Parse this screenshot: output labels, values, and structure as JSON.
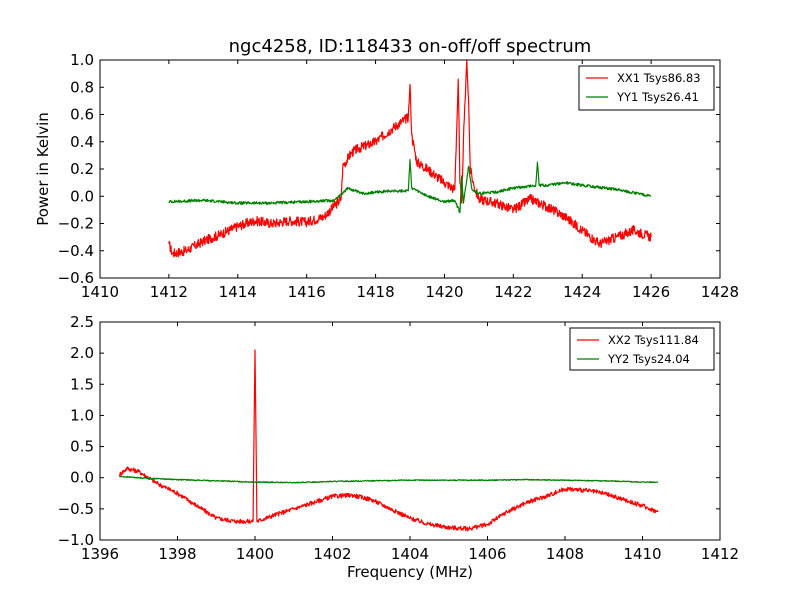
{
  "chart_data": [
    {
      "type": "line",
      "title": "ngc4258, ID:118433 on-off/off spectrum",
      "xlabel": "",
      "ylabel": "Power in Kelvin",
      "xlim": [
        1410,
        1428
      ],
      "ylim": [
        -0.6,
        1.0
      ],
      "xticks": [
        1410,
        1412,
        1414,
        1416,
        1418,
        1420,
        1422,
        1424,
        1426,
        1428
      ],
      "xtick_labels": [
        "1410",
        "1412",
        "1414",
        "1416",
        "1418",
        "1420",
        "1422",
        "1424",
        "1426",
        "1428"
      ],
      "yticks": [
        -0.6,
        -0.4,
        -0.2,
        0.0,
        0.2,
        0.4,
        0.6,
        0.8,
        1.0
      ],
      "ytick_labels": [
        "−0.6",
        "−0.4",
        "−0.2",
        "0.0",
        "0.2",
        "0.4",
        "0.6",
        "0.8",
        "1.0"
      ],
      "grid": false,
      "legend_position": "top-right",
      "series": [
        {
          "name": "XX1 Tsys86.83",
          "color": "#ff0000",
          "noise": 0.035,
          "x": [
            1412.0,
            1412.1,
            1412.5,
            1413.0,
            1413.5,
            1414.0,
            1414.5,
            1415.0,
            1415.5,
            1416.0,
            1416.5,
            1417.0,
            1417.05,
            1417.3,
            1417.5,
            1418.0,
            1418.5,
            1418.95,
            1419.0,
            1419.05,
            1419.2,
            1419.5,
            1420.0,
            1420.3,
            1420.4,
            1420.45,
            1420.5,
            1420.55,
            1420.65,
            1420.7,
            1420.75,
            1420.85,
            1421.0,
            1421.5,
            1422.0,
            1422.5,
            1423.0,
            1423.5,
            1424.0,
            1424.5,
            1425.0,
            1425.5,
            1426.0
          ],
          "y": [
            -0.35,
            -0.42,
            -0.4,
            -0.33,
            -0.28,
            -0.22,
            -0.18,
            -0.2,
            -0.18,
            -0.19,
            -0.15,
            -0.02,
            0.22,
            0.32,
            0.35,
            0.4,
            0.5,
            0.58,
            0.82,
            0.45,
            0.25,
            0.2,
            0.1,
            0.05,
            0.86,
            0.1,
            -0.05,
            0.4,
            1.0,
            0.7,
            0.2,
            0.08,
            -0.02,
            -0.05,
            -0.1,
            -0.02,
            -0.08,
            -0.15,
            -0.25,
            -0.35,
            -0.3,
            -0.25,
            -0.3
          ]
        },
        {
          "name": "YY1 Tsys26.41",
          "color": "#008000",
          "noise": 0.01,
          "x": [
            1412.0,
            1413.0,
            1414.0,
            1415.0,
            1416.0,
            1416.8,
            1417.2,
            1417.6,
            1418.5,
            1418.95,
            1419.0,
            1419.05,
            1419.5,
            1420.0,
            1420.3,
            1420.45,
            1420.5,
            1420.55,
            1420.7,
            1420.8,
            1421.0,
            1421.5,
            1422.0,
            1422.65,
            1422.7,
            1422.75,
            1423.0,
            1423.5,
            1424.0,
            1425.0,
            1426.0
          ],
          "y": [
            -0.04,
            -0.03,
            -0.05,
            -0.05,
            -0.04,
            -0.03,
            0.06,
            0.02,
            0.04,
            0.04,
            0.27,
            0.06,
            0.0,
            -0.04,
            -0.03,
            -0.12,
            0.15,
            -0.05,
            0.22,
            0.05,
            0.02,
            0.03,
            0.06,
            0.08,
            0.25,
            0.08,
            0.08,
            0.1,
            0.08,
            0.05,
            0.0
          ]
        }
      ]
    },
    {
      "type": "line",
      "title": "",
      "xlabel": "Frequency (MHz)",
      "ylabel": "",
      "xlim": [
        1396,
        1412
      ],
      "ylim": [
        -1.0,
        2.5
      ],
      "xticks": [
        1396,
        1398,
        1400,
        1402,
        1404,
        1406,
        1408,
        1410,
        1412
      ],
      "xtick_labels": [
        "1396",
        "1398",
        "1400",
        "1402",
        "1404",
        "1406",
        "1408",
        "1410",
        "1412"
      ],
      "yticks": [
        -1.0,
        -0.5,
        0.0,
        0.5,
        1.0,
        1.5,
        2.0,
        2.5
      ],
      "ytick_labels": [
        "−1.0",
        "−0.5",
        "0.0",
        "0.5",
        "1.0",
        "1.5",
        "2.0",
        "2.5"
      ],
      "grid": false,
      "legend_position": "top-right",
      "series": [
        {
          "name": "XX2 Tsys111.84",
          "color": "#ff0000",
          "noise": 0.035,
          "x": [
            1396.5,
            1396.7,
            1397.0,
            1397.5,
            1398.0,
            1398.5,
            1399.0,
            1399.5,
            1399.95,
            1400.0,
            1400.05,
            1400.5,
            1401.0,
            1401.5,
            1402.0,
            1402.5,
            1403.0,
            1403.5,
            1404.0,
            1404.5,
            1405.0,
            1405.5,
            1406.0,
            1406.5,
            1407.0,
            1407.5,
            1408.0,
            1408.5,
            1409.0,
            1409.5,
            1410.0,
            1410.4
          ],
          "y": [
            0.05,
            0.15,
            0.1,
            -0.1,
            -0.25,
            -0.45,
            -0.65,
            -0.7,
            -0.7,
            2.05,
            -0.7,
            -0.6,
            -0.5,
            -0.4,
            -0.3,
            -0.28,
            -0.35,
            -0.5,
            -0.65,
            -0.75,
            -0.8,
            -0.82,
            -0.75,
            -0.55,
            -0.4,
            -0.3,
            -0.18,
            -0.2,
            -0.25,
            -0.35,
            -0.45,
            -0.55
          ]
        },
        {
          "name": "YY2 Tsys24.04",
          "color": "#008000",
          "noise": 0.008,
          "x": [
            1396.5,
            1397.0,
            1398.0,
            1399.0,
            1400.0,
            1401.0,
            1402.0,
            1403.0,
            1404.0,
            1405.0,
            1406.0,
            1407.0,
            1408.0,
            1409.0,
            1410.0,
            1410.4
          ],
          "y": [
            0.02,
            0.0,
            -0.03,
            -0.05,
            -0.07,
            -0.08,
            -0.06,
            -0.05,
            -0.04,
            -0.04,
            -0.04,
            -0.03,
            -0.04,
            -0.05,
            -0.07,
            -0.07
          ]
        }
      ]
    }
  ]
}
